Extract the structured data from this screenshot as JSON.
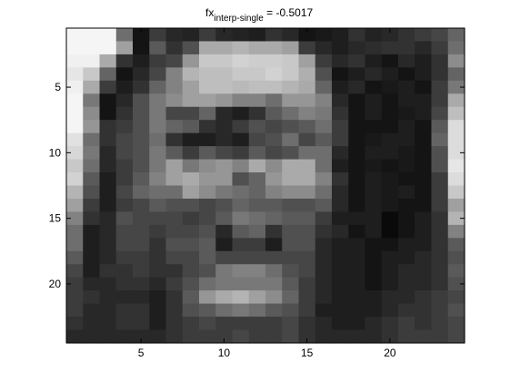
{
  "chart_data": {
    "type": "heatmap",
    "title": {
      "prefix": "fx",
      "subscript": "interp-single",
      "suffix": " = -0.5017"
    },
    "xlabel": "",
    "ylabel": "",
    "colormap": "gray",
    "xlim": [
      0.5,
      24.5
    ],
    "ylim": [
      0.5,
      24.5
    ],
    "y_reversed": true,
    "x_ticks": [
      5,
      10,
      15,
      20
    ],
    "y_ticks": [
      5,
      10,
      15,
      20
    ],
    "grid": false,
    "clim": [
      0,
      255
    ],
    "values": [
      [
        245,
        245,
        245,
        110,
        20,
        60,
        40,
        35,
        60,
        40,
        35,
        30,
        50,
        40,
        20,
        25,
        30,
        50,
        35,
        40,
        50,
        60,
        70,
        100
      ],
      [
        245,
        245,
        245,
        160,
        20,
        90,
        50,
        80,
        170,
        170,
        180,
        170,
        170,
        160,
        60,
        40,
        30,
        40,
        45,
        50,
        50,
        40,
        60,
        110
      ],
      [
        240,
        240,
        170,
        50,
        30,
        60,
        70,
        150,
        200,
        200,
        210,
        205,
        205,
        200,
        160,
        60,
        40,
        50,
        30,
        20,
        40,
        30,
        50,
        140
      ],
      [
        230,
        200,
        100,
        20,
        40,
        70,
        130,
        180,
        190,
        190,
        200,
        200,
        210,
        200,
        175,
        80,
        20,
        30,
        40,
        30,
        20,
        30,
        50,
        100
      ],
      [
        240,
        170,
        60,
        30,
        50,
        100,
        130,
        160,
        190,
        190,
        185,
        190,
        190,
        180,
        170,
        100,
        30,
        40,
        20,
        25,
        30,
        20,
        60,
        120
      ],
      [
        245,
        120,
        20,
        40,
        80,
        120,
        140,
        160,
        160,
        150,
        130,
        130,
        110,
        150,
        150,
        130,
        40,
        20,
        30,
        20,
        30,
        30,
        60,
        170
      ],
      [
        245,
        140,
        20,
        50,
        80,
        120,
        70,
        70,
        100,
        40,
        30,
        50,
        90,
        110,
        130,
        120,
        50,
        20,
        30,
        20,
        25,
        30,
        70,
        190
      ],
      [
        245,
        150,
        50,
        60,
        80,
        120,
        100,
        90,
        50,
        40,
        60,
        80,
        70,
        80,
        90,
        110,
        60,
        20,
        20,
        20,
        30,
        20,
        90,
        220
      ],
      [
        225,
        110,
        50,
        70,
        80,
        110,
        50,
        30,
        30,
        40,
        30,
        70,
        80,
        110,
        70,
        90,
        60,
        20,
        25,
        30,
        30,
        20,
        100,
        220
      ],
      [
        215,
        120,
        40,
        70,
        80,
        120,
        90,
        60,
        90,
        70,
        60,
        90,
        70,
        80,
        110,
        110,
        40,
        20,
        30,
        30,
        25,
        20,
        80,
        220
      ],
      [
        200,
        110,
        40,
        60,
        80,
        120,
        160,
        120,
        140,
        150,
        130,
        170,
        140,
        170,
        170,
        110,
        30,
        20,
        25,
        20,
        25,
        20,
        80,
        230
      ],
      [
        210,
        90,
        30,
        60,
        90,
        130,
        160,
        170,
        150,
        150,
        80,
        100,
        150,
        170,
        170,
        130,
        50,
        20,
        30,
        25,
        20,
        20,
        60,
        220
      ],
      [
        180,
        80,
        30,
        70,
        100,
        110,
        110,
        160,
        140,
        120,
        110,
        100,
        130,
        140,
        140,
        110,
        40,
        20,
        30,
        25,
        30,
        20,
        60,
        200
      ],
      [
        160,
        60,
        30,
        60,
        70,
        90,
        80,
        80,
        70,
        80,
        100,
        90,
        90,
        80,
        80,
        90,
        40,
        20,
        30,
        25,
        20,
        20,
        60,
        160
      ],
      [
        130,
        50,
        40,
        80,
        70,
        70,
        70,
        60,
        70,
        90,
        120,
        110,
        100,
        90,
        90,
        60,
        30,
        30,
        30,
        10,
        20,
        30,
        50,
        180
      ],
      [
        110,
        30,
        40,
        70,
        70,
        60,
        70,
        70,
        80,
        40,
        90,
        100,
        50,
        80,
        80,
        50,
        40,
        20,
        30,
        10,
        20,
        30,
        50,
        130
      ],
      [
        110,
        30,
        40,
        70,
        70,
        50,
        80,
        80,
        90,
        30,
        60,
        60,
        30,
        80,
        80,
        40,
        30,
        30,
        20,
        20,
        30,
        30,
        50,
        90
      ],
      [
        90,
        30,
        40,
        60,
        60,
        50,
        70,
        70,
        90,
        70,
        70,
        70,
        70,
        70,
        70,
        40,
        30,
        30,
        20,
        30,
        30,
        40,
        50,
        80
      ],
      [
        70,
        30,
        50,
        50,
        60,
        50,
        50,
        70,
        80,
        120,
        130,
        130,
        110,
        80,
        70,
        40,
        30,
        30,
        20,
        30,
        40,
        40,
        50,
        90
      ],
      [
        60,
        40,
        40,
        50,
        50,
        40,
        60,
        80,
        110,
        120,
        120,
        120,
        120,
        90,
        60,
        40,
        30,
        30,
        20,
        30,
        40,
        40,
        50,
        80
      ],
      [
        60,
        50,
        40,
        40,
        40,
        30,
        50,
        90,
        150,
        170,
        180,
        160,
        140,
        100,
        60,
        40,
        30,
        30,
        30,
        40,
        40,
        50,
        60,
        70
      ],
      [
        60,
        40,
        40,
        50,
        50,
        30,
        50,
        80,
        90,
        110,
        120,
        110,
        90,
        80,
        60,
        30,
        30,
        30,
        30,
        40,
        50,
        50,
        60,
        80
      ],
      [
        50,
        40,
        40,
        50,
        50,
        30,
        50,
        60,
        70,
        60,
        60,
        60,
        60,
        70,
        50,
        40,
        30,
        30,
        40,
        50,
        60,
        50,
        60,
        70
      ],
      [
        40,
        40,
        40,
        40,
        40,
        40,
        50,
        60,
        60,
        60,
        70,
        60,
        60,
        70,
        50,
        40,
        40,
        40,
        40,
        50,
        60,
        60,
        60,
        70
      ]
    ]
  }
}
